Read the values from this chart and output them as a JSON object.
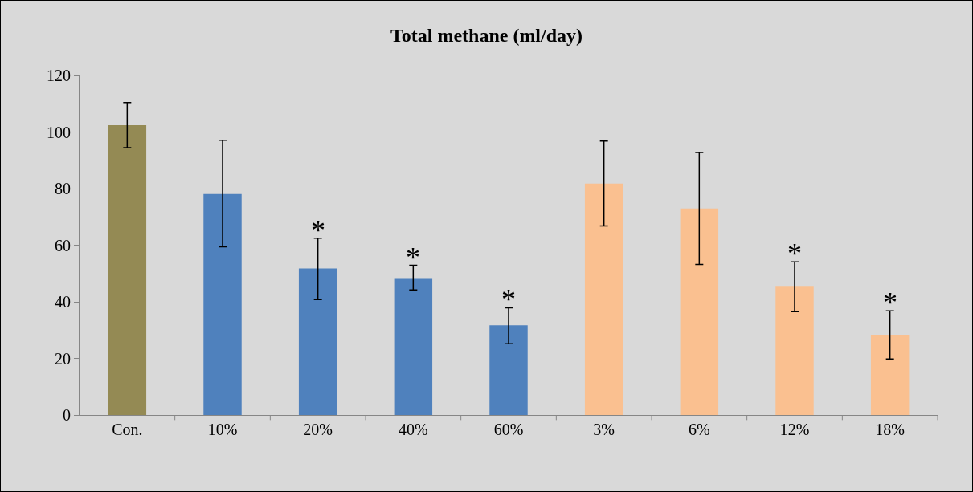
{
  "chart_data": {
    "type": "bar",
    "title": "Total methane (ml/day)",
    "categories": [
      "Con.",
      "10%",
      "20%",
      "40%",
      "60%",
      "3%",
      "6%",
      "12%",
      "18%"
    ],
    "values": [
      102.4,
      78.1,
      51.8,
      48.4,
      31.7,
      81.8,
      73.0,
      45.6,
      28.3
    ],
    "colors": [
      "#948a54",
      "#4f81bd",
      "#4f81bd",
      "#4f81bd",
      "#4f81bd",
      "#fac090",
      "#fac090",
      "#fac090",
      "#fac090"
    ],
    "errors": [
      [
        94.5,
        110.4
      ],
      [
        59.4,
        97.1
      ],
      [
        40.8,
        62.5
      ],
      [
        44.2,
        52.9
      ],
      [
        25.2,
        37.9
      ],
      [
        66.8,
        96.8
      ],
      [
        53.2,
        92.8
      ],
      [
        36.5,
        54.1
      ],
      [
        19.8,
        36.8
      ]
    ],
    "ylim": [
      0,
      120
    ],
    "yticks": [
      0,
      20,
      40,
      60,
      80,
      100,
      120
    ],
    "grid": false,
    "annotations": [
      {
        "text": "*",
        "x": "20%",
        "y": 62.5
      },
      {
        "text": "*",
        "x": "40%",
        "y": 52.9
      },
      {
        "text": "*",
        "x": "60%",
        "y": 37.9
      },
      {
        "text": "*",
        "x": "12%",
        "y": 54.1
      },
      {
        "text": "*",
        "x": "18%",
        "y": 36.8
      }
    ]
  }
}
